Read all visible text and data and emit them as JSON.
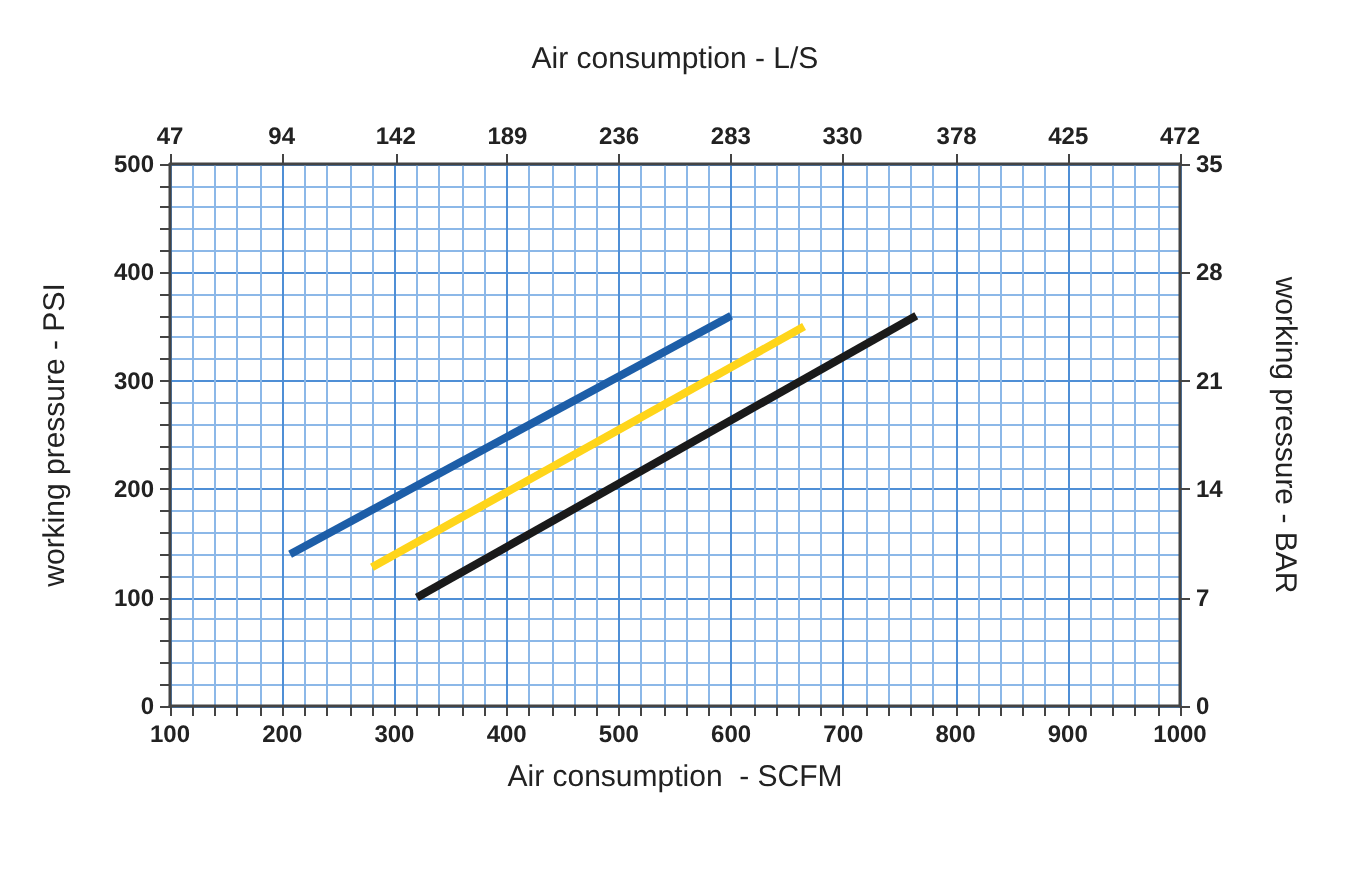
{
  "chart_data": {
    "type": "line",
    "xlabel": "Air consumption  - SCFM",
    "x2label": "Air consumption - L/S",
    "ylabel": "working pressure - PSI",
    "y2label": "working pressure - BAR",
    "series": [
      {
        "color": "#1d5ea8",
        "x": [
          207,
          600
        ],
        "values": [
          140,
          360
        ]
      },
      {
        "color": "#ffd51a",
        "x": [
          280,
          665
        ],
        "values": [
          128,
          350
        ]
      },
      {
        "color": "#1a1a1a",
        "x": [
          320,
          765
        ],
        "values": [
          100,
          360
        ]
      }
    ],
    "xlim": [
      100,
      1000
    ],
    "xticks": [
      100,
      {
        "value": 120,
        "label": null
      },
      {
        "value": 140,
        "label": null
      },
      {
        "value": 160,
        "label": null
      },
      {
        "value": 180,
        "label": null
      },
      200,
      {
        "value": 220,
        "label": null
      },
      {
        "value": 240,
        "label": null
      },
      {
        "value": 260,
        "label": null
      },
      {
        "value": 280,
        "label": null
      },
      300,
      {
        "value": 320,
        "label": null
      },
      {
        "value": 340,
        "label": null
      },
      {
        "value": 360,
        "label": null
      },
      {
        "value": 380,
        "label": null
      },
      400,
      {
        "value": 420,
        "label": null
      },
      {
        "value": 440,
        "label": null
      },
      {
        "value": 460,
        "label": null
      },
      {
        "value": 480,
        "label": null
      },
      500,
      {
        "value": 520,
        "label": null
      },
      {
        "value": 540,
        "label": null
      },
      {
        "value": 560,
        "label": null
      },
      {
        "value": 580,
        "label": null
      },
      600,
      {
        "value": 620,
        "label": null
      },
      {
        "value": 640,
        "label": null
      },
      {
        "value": 660,
        "label": null
      },
      {
        "value": 680,
        "label": null
      },
      700,
      {
        "value": 720,
        "label": null
      },
      {
        "value": 740,
        "label": null
      },
      {
        "value": 760,
        "label": null
      },
      {
        "value": 780,
        "label": null
      },
      800,
      {
        "value": 820,
        "label": null
      },
      {
        "value": 840,
        "label": null
      },
      {
        "value": 860,
        "label": null
      },
      {
        "value": 880,
        "label": null
      },
      900,
      {
        "value": 920,
        "label": null
      },
      {
        "value": 940,
        "label": null
      },
      {
        "value": 960,
        "label": null
      },
      {
        "value": 980,
        "label": null
      },
      1000
    ],
    "x2lim": [
      47,
      472
    ],
    "x2ticks": [
      47,
      94,
      142,
      189,
      236,
      283,
      330,
      378,
      425,
      472
    ],
    "ylim": [
      0,
      500
    ],
    "yticks": [
      0,
      {
        "value": 20,
        "label": null
      },
      {
        "value": 40,
        "label": null
      },
      {
        "value": 60,
        "label": null
      },
      {
        "value": 80,
        "label": null
      },
      100,
      {
        "value": 120,
        "label": null
      },
      {
        "value": 140,
        "label": null
      },
      {
        "value": 160,
        "label": null
      },
      {
        "value": 180,
        "label": null
      },
      200,
      {
        "value": 220,
        "label": null
      },
      {
        "value": 240,
        "label": null
      },
      {
        "value": 260,
        "label": null
      },
      {
        "value": 280,
        "label": null
      },
      300,
      {
        "value": 320,
        "label": null
      },
      {
        "value": 340,
        "label": null
      },
      {
        "value": 360,
        "label": null
      },
      {
        "value": 380,
        "label": null
      },
      400,
      {
        "value": 420,
        "label": null
      },
      {
        "value": 440,
        "label": null
      },
      {
        "value": 460,
        "label": null
      },
      {
        "value": 480,
        "label": null
      },
      500
    ],
    "y2lim": [
      0,
      35
    ],
    "y2ticks": [
      0,
      7,
      14,
      21,
      28,
      35
    ],
    "grid": true,
    "marker": "none",
    "line_style": "solid"
  }
}
